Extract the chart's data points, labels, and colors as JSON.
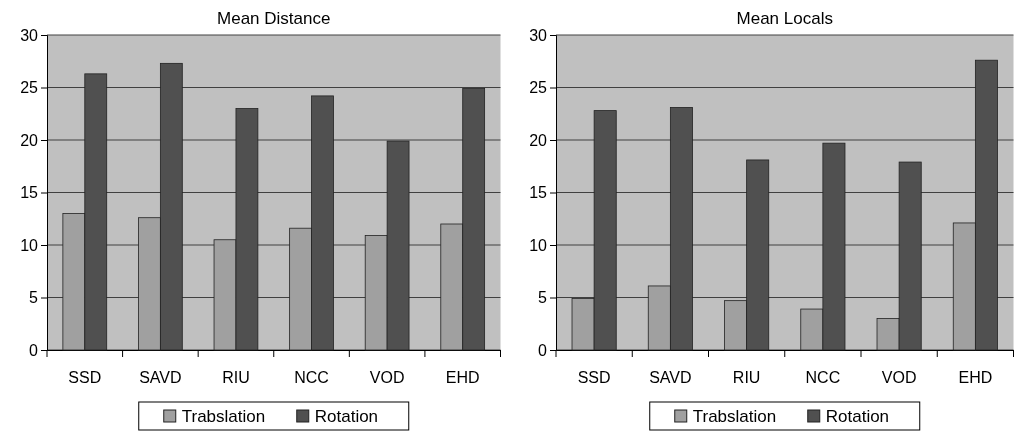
{
  "chart_data": [
    {
      "type": "bar",
      "title": "Mean Distance",
      "categories": [
        "SSD",
        "SAVD",
        "RIU",
        "NCC",
        "VOD",
        "EHD"
      ],
      "series": [
        {
          "name": "Trabslation",
          "color": "#a0a0a0",
          "values": [
            13.0,
            12.6,
            10.5,
            11.6,
            10.9,
            12.0
          ]
        },
        {
          "name": "Rotation",
          "color": "#505050",
          "values": [
            26.3,
            27.3,
            23.0,
            24.2,
            19.9,
            24.9
          ]
        }
      ],
      "ylim": [
        0,
        30
      ],
      "yticks": [
        0,
        5,
        10,
        15,
        20,
        25,
        30
      ],
      "grid": "y",
      "legend": "bottom"
    },
    {
      "type": "bar",
      "title": "Mean Locals",
      "categories": [
        "SSD",
        "SAVD",
        "RIU",
        "NCC",
        "VOD",
        "EHD"
      ],
      "series": [
        {
          "name": "Trabslation",
          "color": "#a0a0a0",
          "values": [
            4.9,
            6.1,
            4.7,
            3.9,
            3.0,
            12.1
          ]
        },
        {
          "name": "Rotation",
          "color": "#505050",
          "values": [
            22.8,
            23.1,
            18.1,
            19.7,
            17.9,
            27.6
          ]
        }
      ],
      "ylim": [
        0,
        30
      ],
      "yticks": [
        0,
        5,
        10,
        15,
        20,
        25,
        30
      ],
      "grid": "y",
      "legend": "bottom"
    }
  ]
}
